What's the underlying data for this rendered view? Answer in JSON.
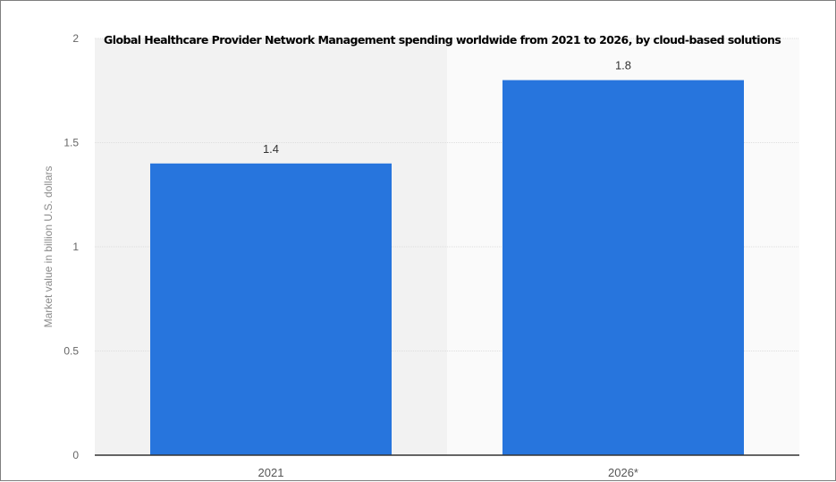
{
  "chart_data": {
    "type": "bar",
    "title": "Global Healthcare Provider Network Management spending worldwide from 2021 to 2026, by cloud-based solutions",
    "xlabel": "",
    "ylabel": "Market value in billion U.S. dollars",
    "categories": [
      "2021",
      "2026*"
    ],
    "values": [
      1.4,
      1.8
    ],
    "value_labels": [
      "1.4",
      "1.8"
    ],
    "ylim": [
      0,
      2
    ],
    "yticks": [
      0,
      0.5,
      1,
      1.5,
      2
    ],
    "ytick_labels": [
      "0",
      "0.5",
      "1",
      "1.5",
      "2"
    ],
    "grid": true,
    "bar_color": "#2775dd",
    "background_bands": [
      "#f2f2f2",
      "#fafafa"
    ]
  }
}
